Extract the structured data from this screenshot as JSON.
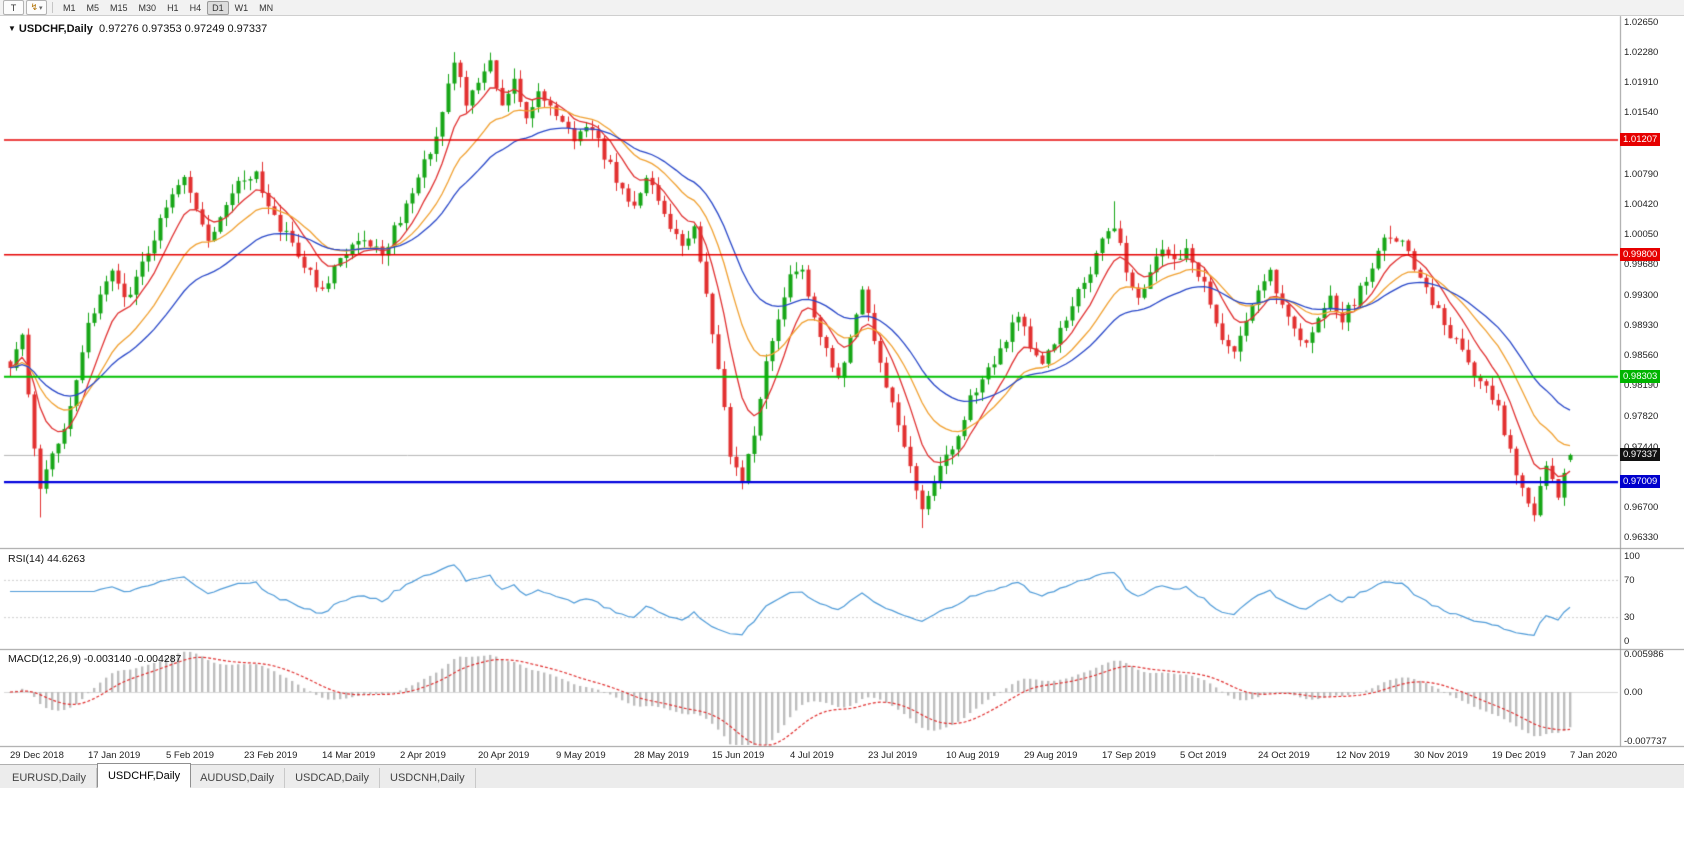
{
  "toolbar": {
    "template_button_label": "T",
    "mode_icon": "↯",
    "caret_icon": "▾",
    "timeframes": [
      "M1",
      "M5",
      "M15",
      "M30",
      "H1",
      "H4",
      "D1",
      "W1",
      "MN"
    ],
    "active_timeframe": "D1"
  },
  "price_panel": {
    "symbol_menu_icon": "▼",
    "symbol": "USDCHF,Daily",
    "open": "0.97276",
    "high": "0.97353",
    "low": "0.97249",
    "close": "0.97337",
    "axis_ticks": [
      "1.02650",
      "1.02280",
      "1.01910",
      "1.01540",
      "1.00790",
      "1.00420",
      "1.00050",
      "0.99680",
      "0.99300",
      "0.98930",
      "0.98560",
      "0.98190",
      "0.97820",
      "0.97440",
      "0.96700",
      "0.96330"
    ],
    "price_tags": [
      {
        "label": "1.01207",
        "bg": "#e60000",
        "fg": "#ffffff"
      },
      {
        "label": "0.99800",
        "bg": "#e60000",
        "fg": "#ffffff"
      },
      {
        "label": "0.98303",
        "bg": "#00b400",
        "fg": "#ffffff"
      },
      {
        "label": "0.97337",
        "bg": "#111111",
        "fg": "#ffffff"
      },
      {
        "label": "0.97009",
        "bg": "#0000cd",
        "fg": "#ffffff"
      }
    ]
  },
  "rsi_panel": {
    "label": "RSI(14)",
    "value": "44.6263",
    "axis_ticks": [
      "100",
      "70",
      "30",
      "0"
    ]
  },
  "macd_panel": {
    "label": "MACD(12,26,9)",
    "main_value": "-0.003140",
    "signal_value": "-0.004287",
    "axis_ticks": [
      "0.005986",
      "0.00",
      "-0.007737"
    ]
  },
  "tabs": [
    {
      "label": "EURUSD,Daily",
      "active": false
    },
    {
      "label": "USDCHF,Daily",
      "active": true
    },
    {
      "label": "AUDUSD,Daily",
      "active": false
    },
    {
      "label": "USDCAD,Daily",
      "active": false
    },
    {
      "label": "USDCNH,Daily",
      "active": false
    }
  ],
  "chart_data": {
    "type": "candlestick",
    "symbol": "USDCHF",
    "timeframe": "Daily",
    "current_bar": {
      "open": 0.97276,
      "high": 0.97353,
      "low": 0.97249,
      "close": 0.97337
    },
    "price_range": {
      "min": 0.9633,
      "max": 1.0265
    },
    "candle_count": 261,
    "x_labels": [
      "29 Dec 2018",
      "17 Jan 2019",
      "5 Feb 2019",
      "23 Feb 2019",
      "14 Mar 2019",
      "2 Apr 2019",
      "20 Apr 2019",
      "9 May 2019",
      "28 May 2019",
      "15 Jun 2019",
      "4 Jul 2019",
      "23 Jul 2019",
      "10 Aug 2019",
      "29 Aug 2019",
      "17 Sep 2019",
      "5 Oct 2019",
      "24 Oct 2019",
      "12 Nov 2019",
      "30 Nov 2019",
      "19 Dec 2019",
      "7 Jan 2020"
    ],
    "x_label_step": 13,
    "up_color": "#17a617",
    "down_color": "#e23030",
    "close_anchors": [
      [
        0,
        0.9845
      ],
      [
        2,
        0.9875
      ],
      [
        4,
        0.9735
      ],
      [
        5,
        0.969
      ],
      [
        7,
        0.973
      ],
      [
        9,
        0.977
      ],
      [
        11,
        0.983
      ],
      [
        13,
        0.9895
      ],
      [
        15,
        0.993
      ],
      [
        17,
        0.996
      ],
      [
        19,
        0.9925
      ],
      [
        21,
        0.995
      ],
      [
        23,
        0.9985
      ],
      [
        25,
        1.002
      ],
      [
        27,
        1.006
      ],
      [
        29,
        1.0075
      ],
      [
        31,
        1.003
      ],
      [
        33,
        1.0
      ],
      [
        35,
        1.003
      ],
      [
        37,
        1.006
      ],
      [
        39,
        1.007
      ],
      [
        41,
        1.0075
      ],
      [
        43,
        1.004
      ],
      [
        45,
        1.0015
      ],
      [
        47,
        0.999
      ],
      [
        49,
        0.9965
      ],
      [
        52,
        0.9935
      ],
      [
        54,
        0.996
      ],
      [
        56,
        0.9985
      ],
      [
        58,
        1.0
      ],
      [
        60,
        0.9995
      ],
      [
        62,
        0.998
      ],
      [
        64,
        1.001
      ],
      [
        66,
        1.004
      ],
      [
        68,
        1.007
      ],
      [
        70,
        1.011
      ],
      [
        72,
        1.015
      ],
      [
        74,
        1.0222
      ],
      [
        76,
        1.0165
      ],
      [
        78,
        1.019
      ],
      [
        80,
        1.0212
      ],
      [
        82,
        1.016
      ],
      [
        84,
        1.0188
      ],
      [
        86,
        1.015
      ],
      [
        88,
        1.0178
      ],
      [
        90,
        1.0165
      ],
      [
        92,
        1.0145
      ],
      [
        94,
        1.0118
      ],
      [
        96,
        1.014
      ],
      [
        98,
        1.0115
      ],
      [
        100,
        1.0088
      ],
      [
        102,
        1.006
      ],
      [
        104,
        1.004
      ],
      [
        106,
        1.0072
      ],
      [
        108,
        1.0045
      ],
      [
        110,
        1.0018
      ],
      [
        112,
        0.9992
      ],
      [
        114,
        1.0012
      ],
      [
        116,
        0.993
      ],
      [
        118,
        0.9838
      ],
      [
        120,
        0.9732
      ],
      [
        122,
        0.9706
      ],
      [
        124,
        0.9762
      ],
      [
        126,
        0.9845
      ],
      [
        128,
        0.9905
      ],
      [
        130,
        0.9948
      ],
      [
        132,
        0.9958
      ],
      [
        134,
        0.9905
      ],
      [
        136,
        0.9858
      ],
      [
        138,
        0.9822
      ],
      [
        140,
        0.9872
      ],
      [
        142,
        0.9932
      ],
      [
        144,
        0.9878
      ],
      [
        146,
        0.982
      ],
      [
        148,
        0.9775
      ],
      [
        150,
        0.9718
      ],
      [
        152,
        0.9662
      ],
      [
        154,
        0.9705
      ],
      [
        156,
        0.9728
      ],
      [
        158,
        0.9762
      ],
      [
        160,
        0.98
      ],
      [
        162,
        0.9832
      ],
      [
        164,
        0.9852
      ],
      [
        166,
        0.9878
      ],
      [
        168,
        0.99
      ],
      [
        170,
        0.9868
      ],
      [
        172,
        0.9845
      ],
      [
        174,
        0.9872
      ],
      [
        176,
        0.9902
      ],
      [
        178,
        0.9932
      ],
      [
        180,
        0.9962
      ],
      [
        182,
        0.9992
      ],
      [
        184,
        1.0012
      ],
      [
        186,
        0.9962
      ],
      [
        188,
        0.9928
      ],
      [
        190,
        0.9958
      ],
      [
        192,
        0.9985
      ],
      [
        194,
        0.9968
      ],
      [
        196,
        0.999
      ],
      [
        198,
        0.9958
      ],
      [
        200,
        0.992
      ],
      [
        202,
        0.9882
      ],
      [
        204,
        0.9858
      ],
      [
        206,
        0.9905
      ],
      [
        208,
        0.9938
      ],
      [
        210,
        0.9955
      ],
      [
        212,
        0.9922
      ],
      [
        214,
        0.9892
      ],
      [
        216,
        0.9872
      ],
      [
        218,
        0.9898
      ],
      [
        220,
        0.9922
      ],
      [
        222,
        0.9902
      ],
      [
        224,
        0.9922
      ],
      [
        226,
        0.9952
      ],
      [
        228,
        0.9985
      ],
      [
        230,
        1.0005
      ],
      [
        232,
        0.9992
      ],
      [
        234,
        0.9968
      ],
      [
        236,
        0.9938
      ],
      [
        238,
        0.9908
      ],
      [
        240,
        0.9882
      ],
      [
        242,
        0.9858
      ],
      [
        244,
        0.9835
      ],
      [
        246,
        0.9815
      ],
      [
        248,
        0.9792
      ],
      [
        250,
        0.9738
      ],
      [
        252,
        0.969
      ],
      [
        254,
        0.9662
      ],
      [
        255,
        0.9692
      ],
      [
        256,
        0.9718
      ],
      [
        257,
        0.97
      ],
      [
        258,
        0.9684
      ],
      [
        259,
        0.9716
      ],
      [
        260,
        0.97337
      ]
    ],
    "spike_lows": [
      [
        5,
        0.9657
      ],
      [
        122,
        0.9694
      ],
      [
        152,
        0.9644
      ],
      [
        254,
        0.9652
      ]
    ],
    "spike_highs": [
      [
        74,
        1.0228
      ],
      [
        184,
        1.0045
      ],
      [
        230,
        1.0015
      ]
    ],
    "bid_line": {
      "price": 0.97337,
      "color": "#b4b4b4",
      "width": 1
    },
    "hlines": [
      {
        "price": 1.01207,
        "color": "#e60000",
        "width": 1.5
      },
      {
        "price": 0.998,
        "color": "#e60000",
        "width": 1.5
      },
      {
        "price": 0.98303,
        "color": "#00c000",
        "width": 1.8
      },
      {
        "price": 0.97009,
        "color": "#0000dd",
        "width": 2.2
      }
    ],
    "moving_averages": [
      {
        "period": 8,
        "color": "#e03030"
      },
      {
        "period": 17,
        "color": "#f0a030"
      },
      {
        "period": 30,
        "color": "#2746c8"
      }
    ],
    "rsi": {
      "period": 14,
      "color": "#4f9bd8",
      "levels": [
        70,
        30
      ],
      "range": [
        0,
        100
      ],
      "last_value": 44.6263
    },
    "macd": {
      "fast": 12,
      "slow": 26,
      "signal": 9,
      "hist_color": "#bdbdbd",
      "signal_color": "#e03030",
      "range_min": -0.007737,
      "range_max": 0.005986,
      "last_main": -0.00314,
      "last_signal": -0.004287
    }
  }
}
